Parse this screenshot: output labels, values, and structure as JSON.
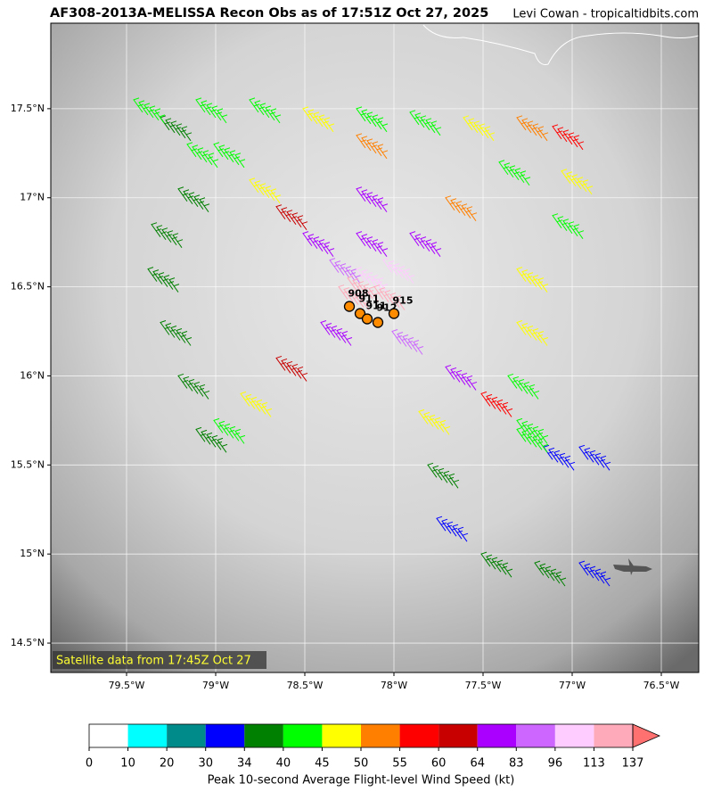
{
  "map": {
    "title": "AF308-2013A-MELISSA Recon Obs as of 17:51Z Oct 27, 2025",
    "credit": "Levi Cowan - tropicaltidbits.com",
    "satellite_note": "Satellite data from 17:45Z Oct 27",
    "xlim": [
      -79.925,
      -76.29
    ],
    "ylim": [
      14.335,
      17.98
    ],
    "xticks": [
      {
        "value": -79.5,
        "label": "79.5°W"
      },
      {
        "value": -79,
        "label": "79°W"
      },
      {
        "value": -78.5,
        "label": "78.5°W"
      },
      {
        "value": -78,
        "label": "78°W"
      },
      {
        "value": -77.5,
        "label": "77.5°W"
      },
      {
        "value": -77,
        "label": "77°W"
      },
      {
        "value": -76.5,
        "label": "76.5°W"
      }
    ],
    "yticks": [
      {
        "value": 14.5,
        "label": "14.5°N"
      },
      {
        "value": 15,
        "label": "15°N"
      },
      {
        "value": 15.5,
        "label": "15.5°N"
      },
      {
        "value": 16,
        "label": "16°N"
      },
      {
        "value": 16.5,
        "label": "16.5°N"
      },
      {
        "value": 17,
        "label": "17°N"
      },
      {
        "value": 17.5,
        "label": "17.5°N"
      }
    ],
    "grid": true,
    "obs": [
      {
        "lon": -79.0,
        "lat": 15.6,
        "wind": 38
      },
      {
        "lon": -79.1,
        "lat": 15.9,
        "wind": 36
      },
      {
        "lon": -79.2,
        "lat": 16.2,
        "wind": 36
      },
      {
        "lon": -79.27,
        "lat": 16.5,
        "wind": 37
      },
      {
        "lon": -79.25,
        "lat": 16.75,
        "wind": 36
      },
      {
        "lon": -79.1,
        "lat": 16.95,
        "wind": 38
      },
      {
        "lon": -79.05,
        "lat": 17.2,
        "wind": 40
      },
      {
        "lon": -79.2,
        "lat": 17.35,
        "wind": 38
      },
      {
        "lon": -79.35,
        "lat": 17.45,
        "wind": 42
      },
      {
        "lon": -79.0,
        "lat": 17.45,
        "wind": 44
      },
      {
        "lon": -78.7,
        "lat": 17.45,
        "wind": 43
      },
      {
        "lon": -78.4,
        "lat": 17.4,
        "wind": 47
      },
      {
        "lon": -78.1,
        "lat": 17.4,
        "wind": 42
      },
      {
        "lon": -77.8,
        "lat": 17.38,
        "wind": 40
      },
      {
        "lon": -77.5,
        "lat": 17.35,
        "wind": 47
      },
      {
        "lon": -77.2,
        "lat": 17.35,
        "wind": 52
      },
      {
        "lon": -77.0,
        "lat": 17.3,
        "wind": 55
      },
      {
        "lon": -76.95,
        "lat": 17.05,
        "wind": 48
      },
      {
        "lon": -77.0,
        "lat": 16.8,
        "wind": 42
      },
      {
        "lon": -77.2,
        "lat": 16.5,
        "wind": 47
      },
      {
        "lon": -77.2,
        "lat": 16.2,
        "wind": 47
      },
      {
        "lon": -77.25,
        "lat": 15.9,
        "wind": 44
      },
      {
        "lon": -77.2,
        "lat": 15.65,
        "wind": 40
      },
      {
        "lon": -77.05,
        "lat": 15.5,
        "wind": 33
      },
      {
        "lon": -76.85,
        "lat": 15.5,
        "wind": 30
      },
      {
        "lon": -78.9,
        "lat": 17.2,
        "wind": 42
      },
      {
        "lon": -78.7,
        "lat": 17.0,
        "wind": 47
      },
      {
        "lon": -78.55,
        "lat": 16.85,
        "wind": 60
      },
      {
        "lon": -78.4,
        "lat": 16.7,
        "wind": 70
      },
      {
        "lon": -78.25,
        "lat": 16.55,
        "wind": 90
      },
      {
        "lon": -78.15,
        "lat": 16.45,
        "wind": 120
      },
      {
        "lon": -78.1,
        "lat": 17.25,
        "wind": 50
      },
      {
        "lon": -78.1,
        "lat": 16.95,
        "wind": 72
      },
      {
        "lon": -78.1,
        "lat": 16.7,
        "wind": 80
      },
      {
        "lon": -78.1,
        "lat": 16.5,
        "wind": 110
      },
      {
        "lon": -77.3,
        "lat": 17.1,
        "wind": 42
      },
      {
        "lon": -77.6,
        "lat": 16.9,
        "wind": 50
      },
      {
        "lon": -77.8,
        "lat": 16.7,
        "wind": 70
      },
      {
        "lon": -77.95,
        "lat": 16.55,
        "wind": 100
      },
      {
        "lon": -77.9,
        "lat": 16.15,
        "wind": 90
      },
      {
        "lon": -77.6,
        "lat": 15.95,
        "wind": 70
      },
      {
        "lon": -77.4,
        "lat": 15.8,
        "wind": 55
      },
      {
        "lon": -77.2,
        "lat": 15.6,
        "wind": 42
      },
      {
        "lon": -78.3,
        "lat": 16.2,
        "wind": 75
      },
      {
        "lon": -78.55,
        "lat": 16.0,
        "wind": 60
      },
      {
        "lon": -78.75,
        "lat": 15.8,
        "wind": 46
      },
      {
        "lon": -78.9,
        "lat": 15.65,
        "wind": 40
      },
      {
        "lon": -77.75,
        "lat": 15.7,
        "wind": 47
      },
      {
        "lon": -77.7,
        "lat": 15.4,
        "wind": 36
      },
      {
        "lon": -77.65,
        "lat": 15.1,
        "wind": 33
      },
      {
        "lon": -77.4,
        "lat": 14.9,
        "wind": 36
      },
      {
        "lon": -77.1,
        "lat": 14.85,
        "wind": 34
      },
      {
        "lon": -76.85,
        "lat": 14.85,
        "wind": 33
      },
      {
        "lon": -78.2,
        "lat": 16.4,
        "wind": 125
      },
      {
        "lon": -78.0,
        "lat": 16.4,
        "wind": 130
      }
    ],
    "dropsondes": [
      {
        "lon": -78.25,
        "lat": 16.39,
        "label": "908"
      },
      {
        "lon": -78.19,
        "lat": 16.35,
        "label": "911"
      },
      {
        "lon": -78.15,
        "lat": 16.32,
        "label": "911"
      },
      {
        "lon": -78.09,
        "lat": 16.3,
        "label": "912"
      },
      {
        "lon": -78.0,
        "lat": 16.35,
        "label": "915"
      }
    ],
    "dropsonde_color": "#ff8c00",
    "colorbar": {
      "bounds": [
        0,
        10,
        20,
        30,
        34,
        40,
        45,
        50,
        55,
        60,
        64,
        83,
        96,
        113,
        137
      ],
      "colors": [
        "#ffffff",
        "#00ffff",
        "#008b8b",
        "#0000ff",
        "#008000",
        "#00ff00",
        "#ffff00",
        "#ff8000",
        "#ff0000",
        "#c80000",
        "#aa00ff",
        "#cc66ff",
        "#ffccff",
        "#ffaabb"
      ],
      "extend_color": "#ff7070",
      "label": "Peak 10-second Average Flight-level Wind Speed (kt)"
    }
  }
}
